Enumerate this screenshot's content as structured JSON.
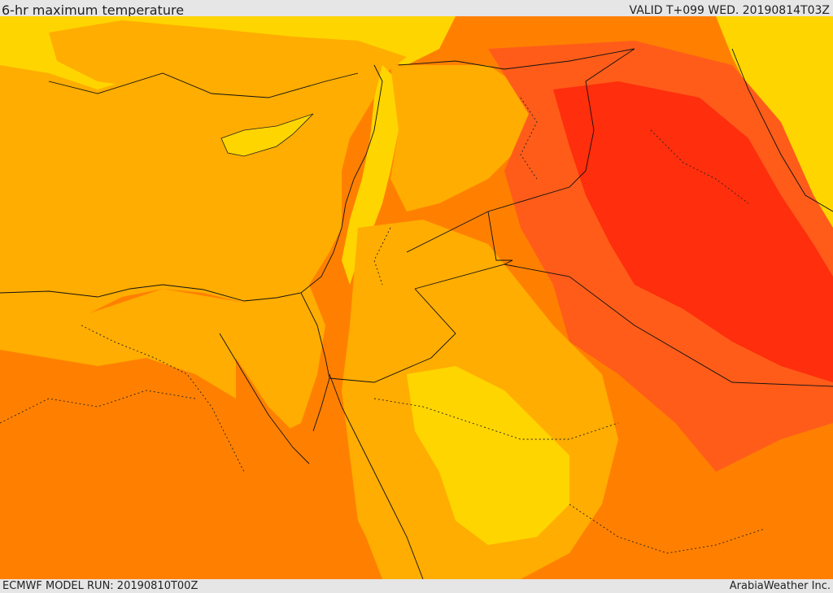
{
  "header": {
    "title": "6-hr maximum temperature",
    "valid": "VALID T+099 WED. 20190814T03Z"
  },
  "footer": {
    "model_run": "ECMWF MODEL RUN: 20190810T00Z",
    "credit": "ArabiaWeather Inc."
  },
  "map": {
    "sea_color": "#ffad00",
    "colors": {
      "yellow": "#ffd500",
      "light_orange": "#ffad00",
      "orange": "#ff8000",
      "dark_orange": "#ff5c1a",
      "red": "#ff2e0c"
    }
  }
}
